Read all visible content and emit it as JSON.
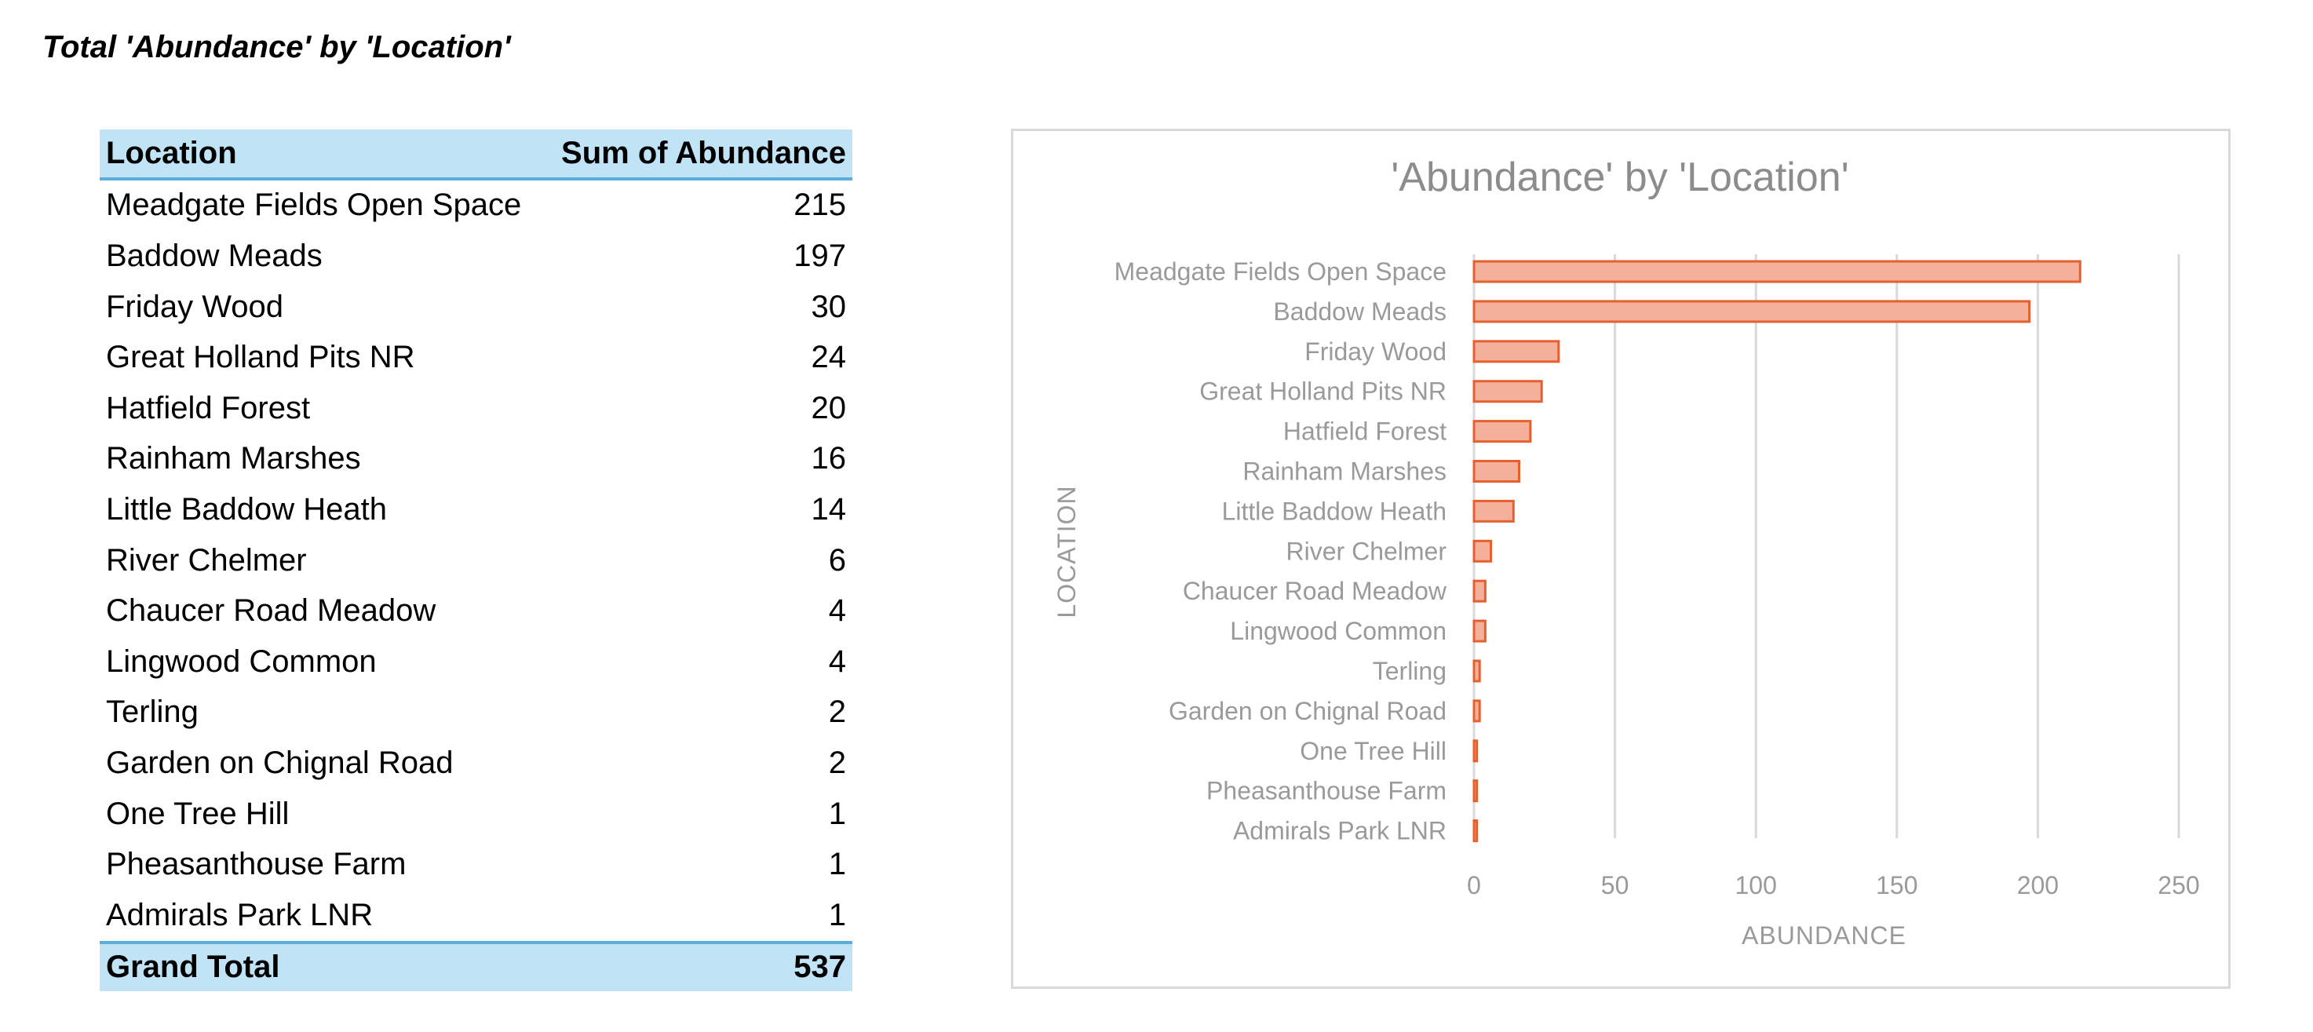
{
  "page_title": "Total 'Abundance' by 'Location'",
  "pivot": {
    "headers": {
      "location": "Location",
      "sum": "Sum of Abundance"
    },
    "rows": [
      {
        "location": "Meadgate Fields Open Space",
        "value": "215"
      },
      {
        "location": "Baddow Meads",
        "value": "197"
      },
      {
        "location": "Friday Wood",
        "value": "30"
      },
      {
        "location": "Great Holland Pits NR",
        "value": "24"
      },
      {
        "location": "Hatfield Forest",
        "value": "20"
      },
      {
        "location": "Rainham Marshes",
        "value": "16"
      },
      {
        "location": "Little Baddow Heath",
        "value": "14"
      },
      {
        "location": "River Chelmer",
        "value": "6"
      },
      {
        "location": "Chaucer Road Meadow",
        "value": "4"
      },
      {
        "location": "Lingwood Common",
        "value": "4"
      },
      {
        "location": "Terling",
        "value": "2"
      },
      {
        "location": "Garden on Chignal Road",
        "value": "2"
      },
      {
        "location": "One Tree Hill",
        "value": "1"
      },
      {
        "location": "Pheasanthouse Farm",
        "value": "1"
      },
      {
        "location": "Admirals Park LNR",
        "value": "1"
      }
    ],
    "grand_total": {
      "label": "Grand Total",
      "value": "537"
    }
  },
  "chart_data": {
    "type": "bar",
    "orientation": "horizontal",
    "title": "'Abundance' by 'Location'",
    "xlabel": "ABUNDANCE",
    "ylabel": "LOCATION",
    "categories": [
      "Meadgate Fields Open Space",
      "Baddow Meads",
      "Friday Wood",
      "Great Holland Pits NR",
      "Hatfield Forest",
      "Rainham Marshes",
      "Little Baddow Heath",
      "River Chelmer",
      "Chaucer Road Meadow",
      "Lingwood Common",
      "Terling",
      "Garden on Chignal Road",
      "One Tree Hill",
      "Pheasanthouse Farm",
      "Admirals Park LNR"
    ],
    "values": [
      215,
      197,
      30,
      24,
      20,
      16,
      14,
      6,
      4,
      4,
      2,
      2,
      1,
      1,
      1
    ],
    "xlim": [
      0,
      250
    ],
    "xticks": [
      0,
      50,
      100,
      150,
      200,
      250
    ],
    "grid": "vertical",
    "legend": "none",
    "colors": {
      "bar_fill": "#f4b09a",
      "bar_stroke": "#e6602f"
    }
  }
}
